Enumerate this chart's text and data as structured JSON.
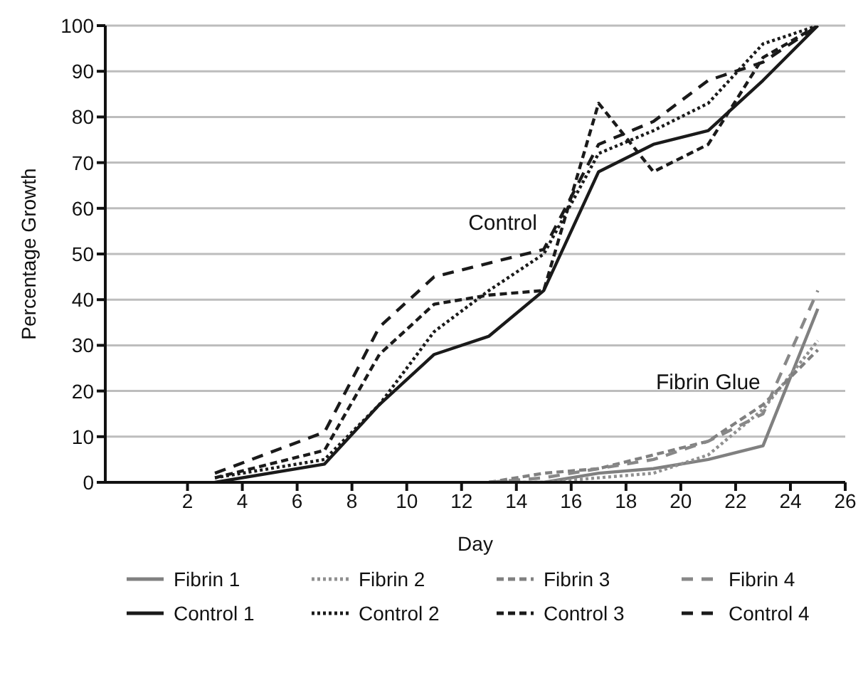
{
  "chart_data": {
    "type": "line",
    "xlabel": "Day",
    "ylabel": "Percentage Growth",
    "annotations": [
      "Control",
      "Fibrin Glue"
    ],
    "xlim": [
      -1,
      26
    ],
    "xticks": [
      2,
      4,
      6,
      8,
      10,
      12,
      14,
      16,
      18,
      20,
      22,
      24,
      26
    ],
    "ylim": [
      0,
      100
    ],
    "yticks": [
      0,
      10,
      20,
      30,
      40,
      50,
      60,
      70,
      80,
      90,
      100
    ],
    "grid": "y",
    "legend": "bottom",
    "marker": "none",
    "series": [
      {
        "name": "Fibrin 1",
        "color": "#808080",
        "line_style": "solid",
        "x": [
          13,
          15,
          17,
          19,
          21,
          23,
          25
        ],
        "values": [
          0,
          0,
          2,
          3,
          5,
          8,
          38
        ]
      },
      {
        "name": "Fibrin 2",
        "color": "#909090",
        "line_style": "dotted",
        "x": [
          13,
          15,
          17,
          19,
          21,
          23,
          25
        ],
        "values": [
          0,
          0,
          1,
          2,
          6,
          16,
          31
        ]
      },
      {
        "name": "Fibrin 3",
        "color": "#808080",
        "line_style": "dashed",
        "x": [
          13,
          15,
          17,
          19,
          21,
          23,
          25
        ],
        "values": [
          0,
          2,
          3,
          6,
          9,
          17,
          29
        ]
      },
      {
        "name": "Fibrin 4",
        "color": "#888888",
        "line_style": "dashed",
        "x": [
          13,
          15,
          17,
          19,
          21,
          23,
          25
        ],
        "values": [
          0,
          1,
          3,
          5,
          9,
          15,
          42
        ]
      },
      {
        "name": "Control 1",
        "color": "#1a1a1a",
        "line_style": "solid",
        "x": [
          3,
          7,
          9,
          11,
          13,
          15,
          17,
          19,
          21,
          23,
          25
        ],
        "values": [
          0,
          4,
          17,
          28,
          32,
          42,
          68,
          74,
          77,
          88,
          100
        ]
      },
      {
        "name": "Control 2",
        "color": "#1a1a1a",
        "line_style": "dotted",
        "x": [
          3,
          7,
          9,
          11,
          13,
          15,
          17,
          19,
          21,
          23,
          25
        ],
        "values": [
          1,
          5,
          17,
          33,
          42,
          50,
          72,
          77,
          83,
          96,
          100
        ]
      },
      {
        "name": "Control 3",
        "color": "#1a1a1a",
        "line_style": "dashed",
        "x": [
          3,
          7,
          9,
          11,
          13,
          15,
          17,
          19,
          21,
          23,
          25
        ],
        "values": [
          1,
          7,
          28,
          39,
          41,
          42,
          83,
          68,
          74,
          93,
          100
        ]
      },
      {
        "name": "Control 4",
        "color": "#1a1a1a",
        "line_style": "dashed",
        "x": [
          3,
          7,
          9,
          11,
          13,
          15,
          17,
          19,
          21,
          23,
          25
        ],
        "values": [
          2,
          11,
          34,
          45,
          48,
          51,
          74,
          79,
          88,
          92,
          100
        ]
      }
    ]
  }
}
